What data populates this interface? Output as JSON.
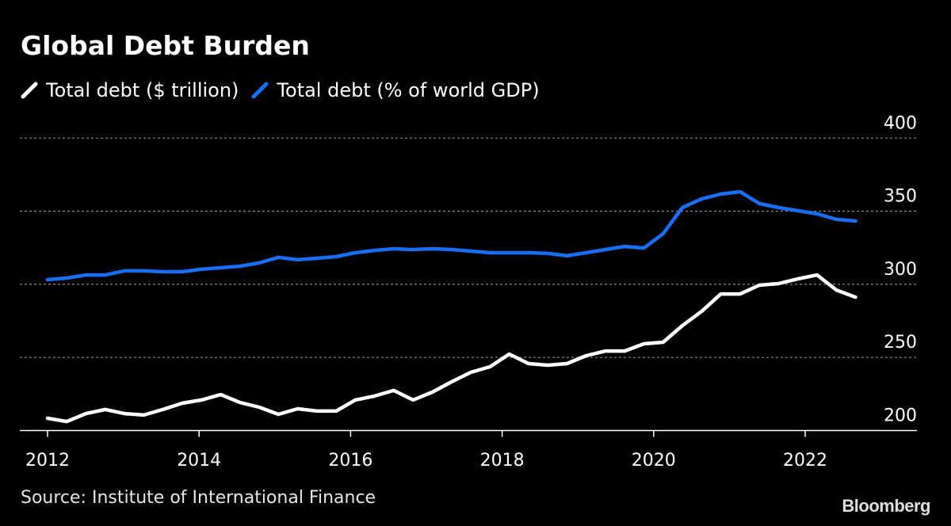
{
  "chart_data": {
    "type": "line",
    "title": "Global Debt Burden",
    "source": "Source: Institute of International Finance",
    "brand": "Bloomberg",
    "xlim": [
      2012,
      2022.5
    ],
    "ylim": [
      200,
      400
    ],
    "grid": true,
    "legend_placement": "top-left",
    "x_ticks": [
      "2012",
      "2014",
      "2016",
      "2018",
      "2020",
      "2022"
    ],
    "y_ticks": [
      "200",
      "250",
      "300",
      "350",
      "400"
    ],
    "colors": {
      "white": "#ffffff",
      "blue": "#1a6ef5"
    },
    "x": [
      2012.0,
      2012.25,
      2012.5,
      2012.75,
      2013.0,
      2013.25,
      2013.5,
      2013.75,
      2014.0,
      2014.25,
      2014.5,
      2014.75,
      2015.0,
      2015.25,
      2015.5,
      2015.75,
      2016.0,
      2016.25,
      2016.5,
      2016.75,
      2017.0,
      2017.25,
      2017.5,
      2017.75,
      2018.0,
      2018.25,
      2018.5,
      2018.75,
      2019.0,
      2019.25,
      2019.5,
      2019.75,
      2020.0,
      2020.25,
      2020.5,
      2020.75,
      2021.0,
      2021.25,
      2021.5,
      2021.75,
      2022.0,
      2022.25,
      2022.5
    ],
    "series": [
      {
        "name": "Total debt ($ trillion)",
        "color": "#ffffff",
        "values": [
          208.4,
          206.2,
          211.6,
          214.4,
          211.6,
          210.6,
          214.4,
          218.7,
          220.9,
          224.6,
          219.2,
          216.0,
          211.1,
          214.9,
          213.3,
          213.3,
          220.9,
          223.6,
          227.4,
          220.9,
          226.3,
          233.3,
          239.8,
          243.6,
          252.3,
          245.8,
          244.7,
          245.8,
          251.2,
          254.4,
          254.4,
          259.3,
          260.4,
          271.8,
          281.5,
          293.4,
          293.4,
          299.4,
          300.5,
          303.7,
          306.4,
          296.1,
          291.2
        ]
      },
      {
        "name": "Total debt (% of world GDP)",
        "color": "#1a6ef5",
        "values": [
          303.2,
          304.3,
          306.4,
          306.4,
          309.2,
          309.2,
          308.6,
          308.6,
          310.3,
          311.3,
          312.4,
          314.6,
          318.4,
          316.8,
          317.8,
          318.9,
          321.6,
          323.2,
          324.3,
          323.8,
          324.3,
          323.8,
          322.7,
          321.6,
          321.6,
          321.6,
          321.1,
          319.5,
          321.6,
          323.8,
          325.9,
          324.8,
          334.6,
          352.5,
          358.4,
          361.7,
          363.3,
          355.2,
          352.5,
          350.3,
          348.2,
          344.4,
          343.3
        ]
      }
    ]
  }
}
